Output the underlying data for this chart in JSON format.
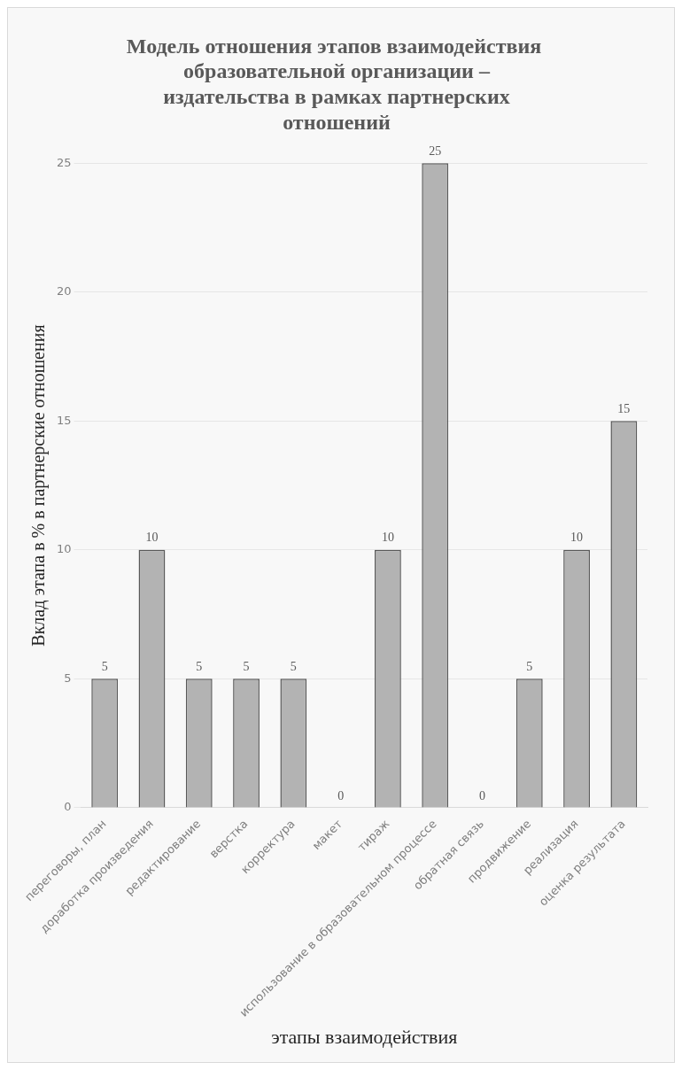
{
  "chart_data": {
    "type": "bar",
    "title": "Модель отношения этапов взаимодействия  образовательной организации – издательства в рамках партнерских отношений",
    "xlabel": "этапы взаимодействия",
    "ylabel": "Вклад этапа в % в партнерские отношения",
    "categories": [
      "переговоры, план",
      "доработка произведения",
      "редактирование",
      "верстка",
      "корректура",
      "макет",
      "тираж",
      "использование в образовательном процессе",
      "обратная связь",
      "продвижение",
      "реализация",
      "оценка результата"
    ],
    "values": [
      5,
      10,
      5,
      5,
      5,
      0,
      10,
      25,
      0,
      5,
      10,
      15
    ],
    "color": "#b3b3b3",
    "ylim": [
      0,
      25
    ],
    "yticks": [
      0,
      5,
      10,
      15,
      20,
      25
    ],
    "grid": "y",
    "data_labels": true,
    "legend": false
  }
}
